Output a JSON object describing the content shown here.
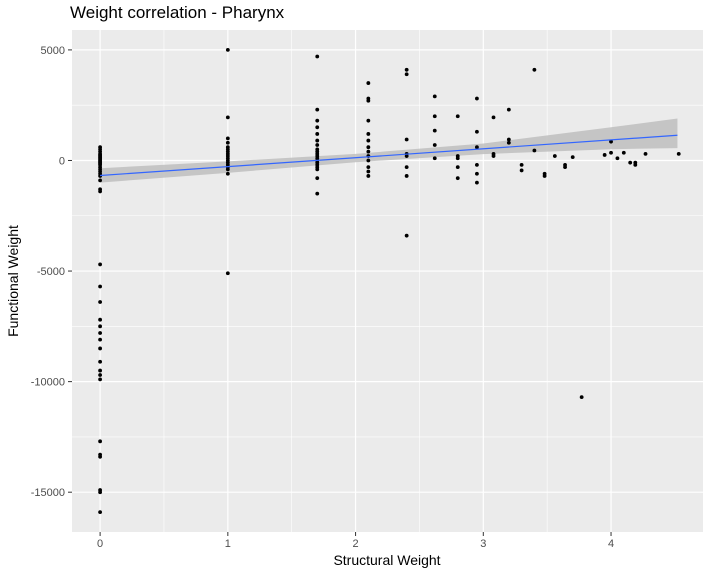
{
  "chart_data": {
    "type": "scatter",
    "title": "Weight correlation - Pharynx",
    "xlabel": "Structural Weight",
    "ylabel": "Functional Weight",
    "xlim": [
      -0.22,
      4.72
    ],
    "ylim": [
      -16800,
      5900
    ],
    "x_ticks": [
      0,
      1,
      2,
      3,
      4
    ],
    "x_tick_labels": [
      "0",
      "1",
      "2",
      "3",
      "4"
    ],
    "y_ticks": [
      -15000,
      -10000,
      -5000,
      0,
      5000
    ],
    "y_tick_labels": [
      "-15000",
      "-10000",
      "-5000",
      "0",
      "5000"
    ],
    "grid": true,
    "background": "#ebebeb",
    "gridline_color": "#ffffff",
    "point_color": "#000000",
    "trend_color": "#3366ff",
    "ribbon_color": "#bebebe",
    "trend_line": {
      "x": [
        0,
        4.52
      ],
      "y": [
        -680,
        1140
      ]
    },
    "confidence_ribbon": {
      "x": [
        0,
        1,
        2,
        3,
        4,
        4.52
      ],
      "upper": [
        -350,
        -40,
        300,
        770,
        1500,
        1900
      ],
      "lower": [
        -1000,
        -560,
        -80,
        290,
        510,
        560
      ]
    },
    "points": [
      {
        "x": 0,
        "y": 600
      },
      {
        "x": 0,
        "y": 500
      },
      {
        "x": 0,
        "y": 400
      },
      {
        "x": 0,
        "y": 300
      },
      {
        "x": 0,
        "y": 250
      },
      {
        "x": 0,
        "y": 200
      },
      {
        "x": 0,
        "y": 150
      },
      {
        "x": 0,
        "y": 100
      },
      {
        "x": 0,
        "y": 50
      },
      {
        "x": 0,
        "y": 0
      },
      {
        "x": 0,
        "y": -50
      },
      {
        "x": 0,
        "y": -100
      },
      {
        "x": 0,
        "y": -150
      },
      {
        "x": 0,
        "y": -200
      },
      {
        "x": 0,
        "y": -300
      },
      {
        "x": 0,
        "y": -400
      },
      {
        "x": 0,
        "y": -500
      },
      {
        "x": 0,
        "y": -600
      },
      {
        "x": 0,
        "y": -700
      },
      {
        "x": 0,
        "y": -900
      },
      {
        "x": 0,
        "y": -1300
      },
      {
        "x": 0,
        "y": -1400
      },
      {
        "x": 0,
        "y": -4700
      },
      {
        "x": 0,
        "y": -5700
      },
      {
        "x": 0,
        "y": -6400
      },
      {
        "x": 0,
        "y": -7200
      },
      {
        "x": 0,
        "y": -7500
      },
      {
        "x": 0,
        "y": -7800
      },
      {
        "x": 0,
        "y": -8100
      },
      {
        "x": 0,
        "y": -8500
      },
      {
        "x": 0,
        "y": -9100
      },
      {
        "x": 0,
        "y": -9500
      },
      {
        "x": 0,
        "y": -9700
      },
      {
        "x": 0,
        "y": -9900
      },
      {
        "x": 0,
        "y": -12700
      },
      {
        "x": 0,
        "y": -13300
      },
      {
        "x": 0,
        "y": -13400
      },
      {
        "x": 0,
        "y": -14900
      },
      {
        "x": 0,
        "y": -15000
      },
      {
        "x": 0,
        "y": -15900
      },
      {
        "x": 1,
        "y": 5000
      },
      {
        "x": 1,
        "y": 1950
      },
      {
        "x": 1,
        "y": 1000
      },
      {
        "x": 1,
        "y": 800
      },
      {
        "x": 1,
        "y": 600
      },
      {
        "x": 1,
        "y": 500
      },
      {
        "x": 1,
        "y": 400
      },
      {
        "x": 1,
        "y": 300
      },
      {
        "x": 1,
        "y": 200
      },
      {
        "x": 1,
        "y": 100
      },
      {
        "x": 1,
        "y": 0
      },
      {
        "x": 1,
        "y": -100
      },
      {
        "x": 1,
        "y": -200
      },
      {
        "x": 1,
        "y": -300
      },
      {
        "x": 1,
        "y": -400
      },
      {
        "x": 1,
        "y": -600
      },
      {
        "x": 1,
        "y": -5100
      },
      {
        "x": 1.7,
        "y": 4700
      },
      {
        "x": 1.7,
        "y": 2300
      },
      {
        "x": 1.7,
        "y": 1800
      },
      {
        "x": 1.7,
        "y": 1500
      },
      {
        "x": 1.7,
        "y": 1200
      },
      {
        "x": 1.7,
        "y": 900
      },
      {
        "x": 1.7,
        "y": 700
      },
      {
        "x": 1.7,
        "y": 500
      },
      {
        "x": 1.7,
        "y": 400
      },
      {
        "x": 1.7,
        "y": 300
      },
      {
        "x": 1.7,
        "y": 200
      },
      {
        "x": 1.7,
        "y": 100
      },
      {
        "x": 1.7,
        "y": 0
      },
      {
        "x": 1.7,
        "y": -100
      },
      {
        "x": 1.7,
        "y": -200
      },
      {
        "x": 1.7,
        "y": -300
      },
      {
        "x": 1.7,
        "y": -400
      },
      {
        "x": 1.7,
        "y": -800
      },
      {
        "x": 1.7,
        "y": -1500
      },
      {
        "x": 2.1,
        "y": 3500
      },
      {
        "x": 2.1,
        "y": 2800
      },
      {
        "x": 2.1,
        "y": 2700
      },
      {
        "x": 2.1,
        "y": 1800
      },
      {
        "x": 2.1,
        "y": 1200
      },
      {
        "x": 2.1,
        "y": 900
      },
      {
        "x": 2.1,
        "y": 600
      },
      {
        "x": 2.1,
        "y": 400
      },
      {
        "x": 2.1,
        "y": 200
      },
      {
        "x": 2.1,
        "y": 0
      },
      {
        "x": 2.1,
        "y": -300
      },
      {
        "x": 2.1,
        "y": -500
      },
      {
        "x": 2.1,
        "y": -700
      },
      {
        "x": 2.4,
        "y": 4100
      },
      {
        "x": 2.4,
        "y": 3900
      },
      {
        "x": 2.4,
        "y": 950
      },
      {
        "x": 2.4,
        "y": 300
      },
      {
        "x": 2.4,
        "y": 200
      },
      {
        "x": 2.4,
        "y": -300
      },
      {
        "x": 2.4,
        "y": -700
      },
      {
        "x": 2.4,
        "y": -3400
      },
      {
        "x": 2.62,
        "y": 2900
      },
      {
        "x": 2.62,
        "y": 2000
      },
      {
        "x": 2.62,
        "y": 1350
      },
      {
        "x": 2.62,
        "y": 700
      },
      {
        "x": 2.62,
        "y": 100
      },
      {
        "x": 2.8,
        "y": 2000
      },
      {
        "x": 2.8,
        "y": 200
      },
      {
        "x": 2.8,
        "y": 100
      },
      {
        "x": 2.8,
        "y": -300
      },
      {
        "x": 2.8,
        "y": -800
      },
      {
        "x": 2.95,
        "y": 2800
      },
      {
        "x": 2.95,
        "y": 1300
      },
      {
        "x": 2.95,
        "y": 600
      },
      {
        "x": 2.95,
        "y": -200
      },
      {
        "x": 2.95,
        "y": -600
      },
      {
        "x": 2.95,
        "y": -1000
      },
      {
        "x": 3.08,
        "y": 1950
      },
      {
        "x": 3.08,
        "y": 300
      },
      {
        "x": 3.08,
        "y": 200
      },
      {
        "x": 3.2,
        "y": 2300
      },
      {
        "x": 3.2,
        "y": 950
      },
      {
        "x": 3.2,
        "y": 800
      },
      {
        "x": 3.3,
        "y": -200
      },
      {
        "x": 3.3,
        "y": -450
      },
      {
        "x": 3.4,
        "y": 4100
      },
      {
        "x": 3.4,
        "y": 450
      },
      {
        "x": 3.48,
        "y": -600
      },
      {
        "x": 3.48,
        "y": -700
      },
      {
        "x": 3.56,
        "y": 200
      },
      {
        "x": 3.64,
        "y": -200
      },
      {
        "x": 3.64,
        "y": -300
      },
      {
        "x": 3.7,
        "y": 150
      },
      {
        "x": 3.77,
        "y": -10700
      },
      {
        "x": 3.95,
        "y": 250
      },
      {
        "x": 4.0,
        "y": 850
      },
      {
        "x": 4.0,
        "y": 350
      },
      {
        "x": 4.05,
        "y": 100
      },
      {
        "x": 4.1,
        "y": 350
      },
      {
        "x": 4.15,
        "y": -100
      },
      {
        "x": 4.19,
        "y": -100
      },
      {
        "x": 4.19,
        "y": -200
      },
      {
        "x": 4.27,
        "y": 300
      },
      {
        "x": 4.53,
        "y": 300
      }
    ]
  }
}
